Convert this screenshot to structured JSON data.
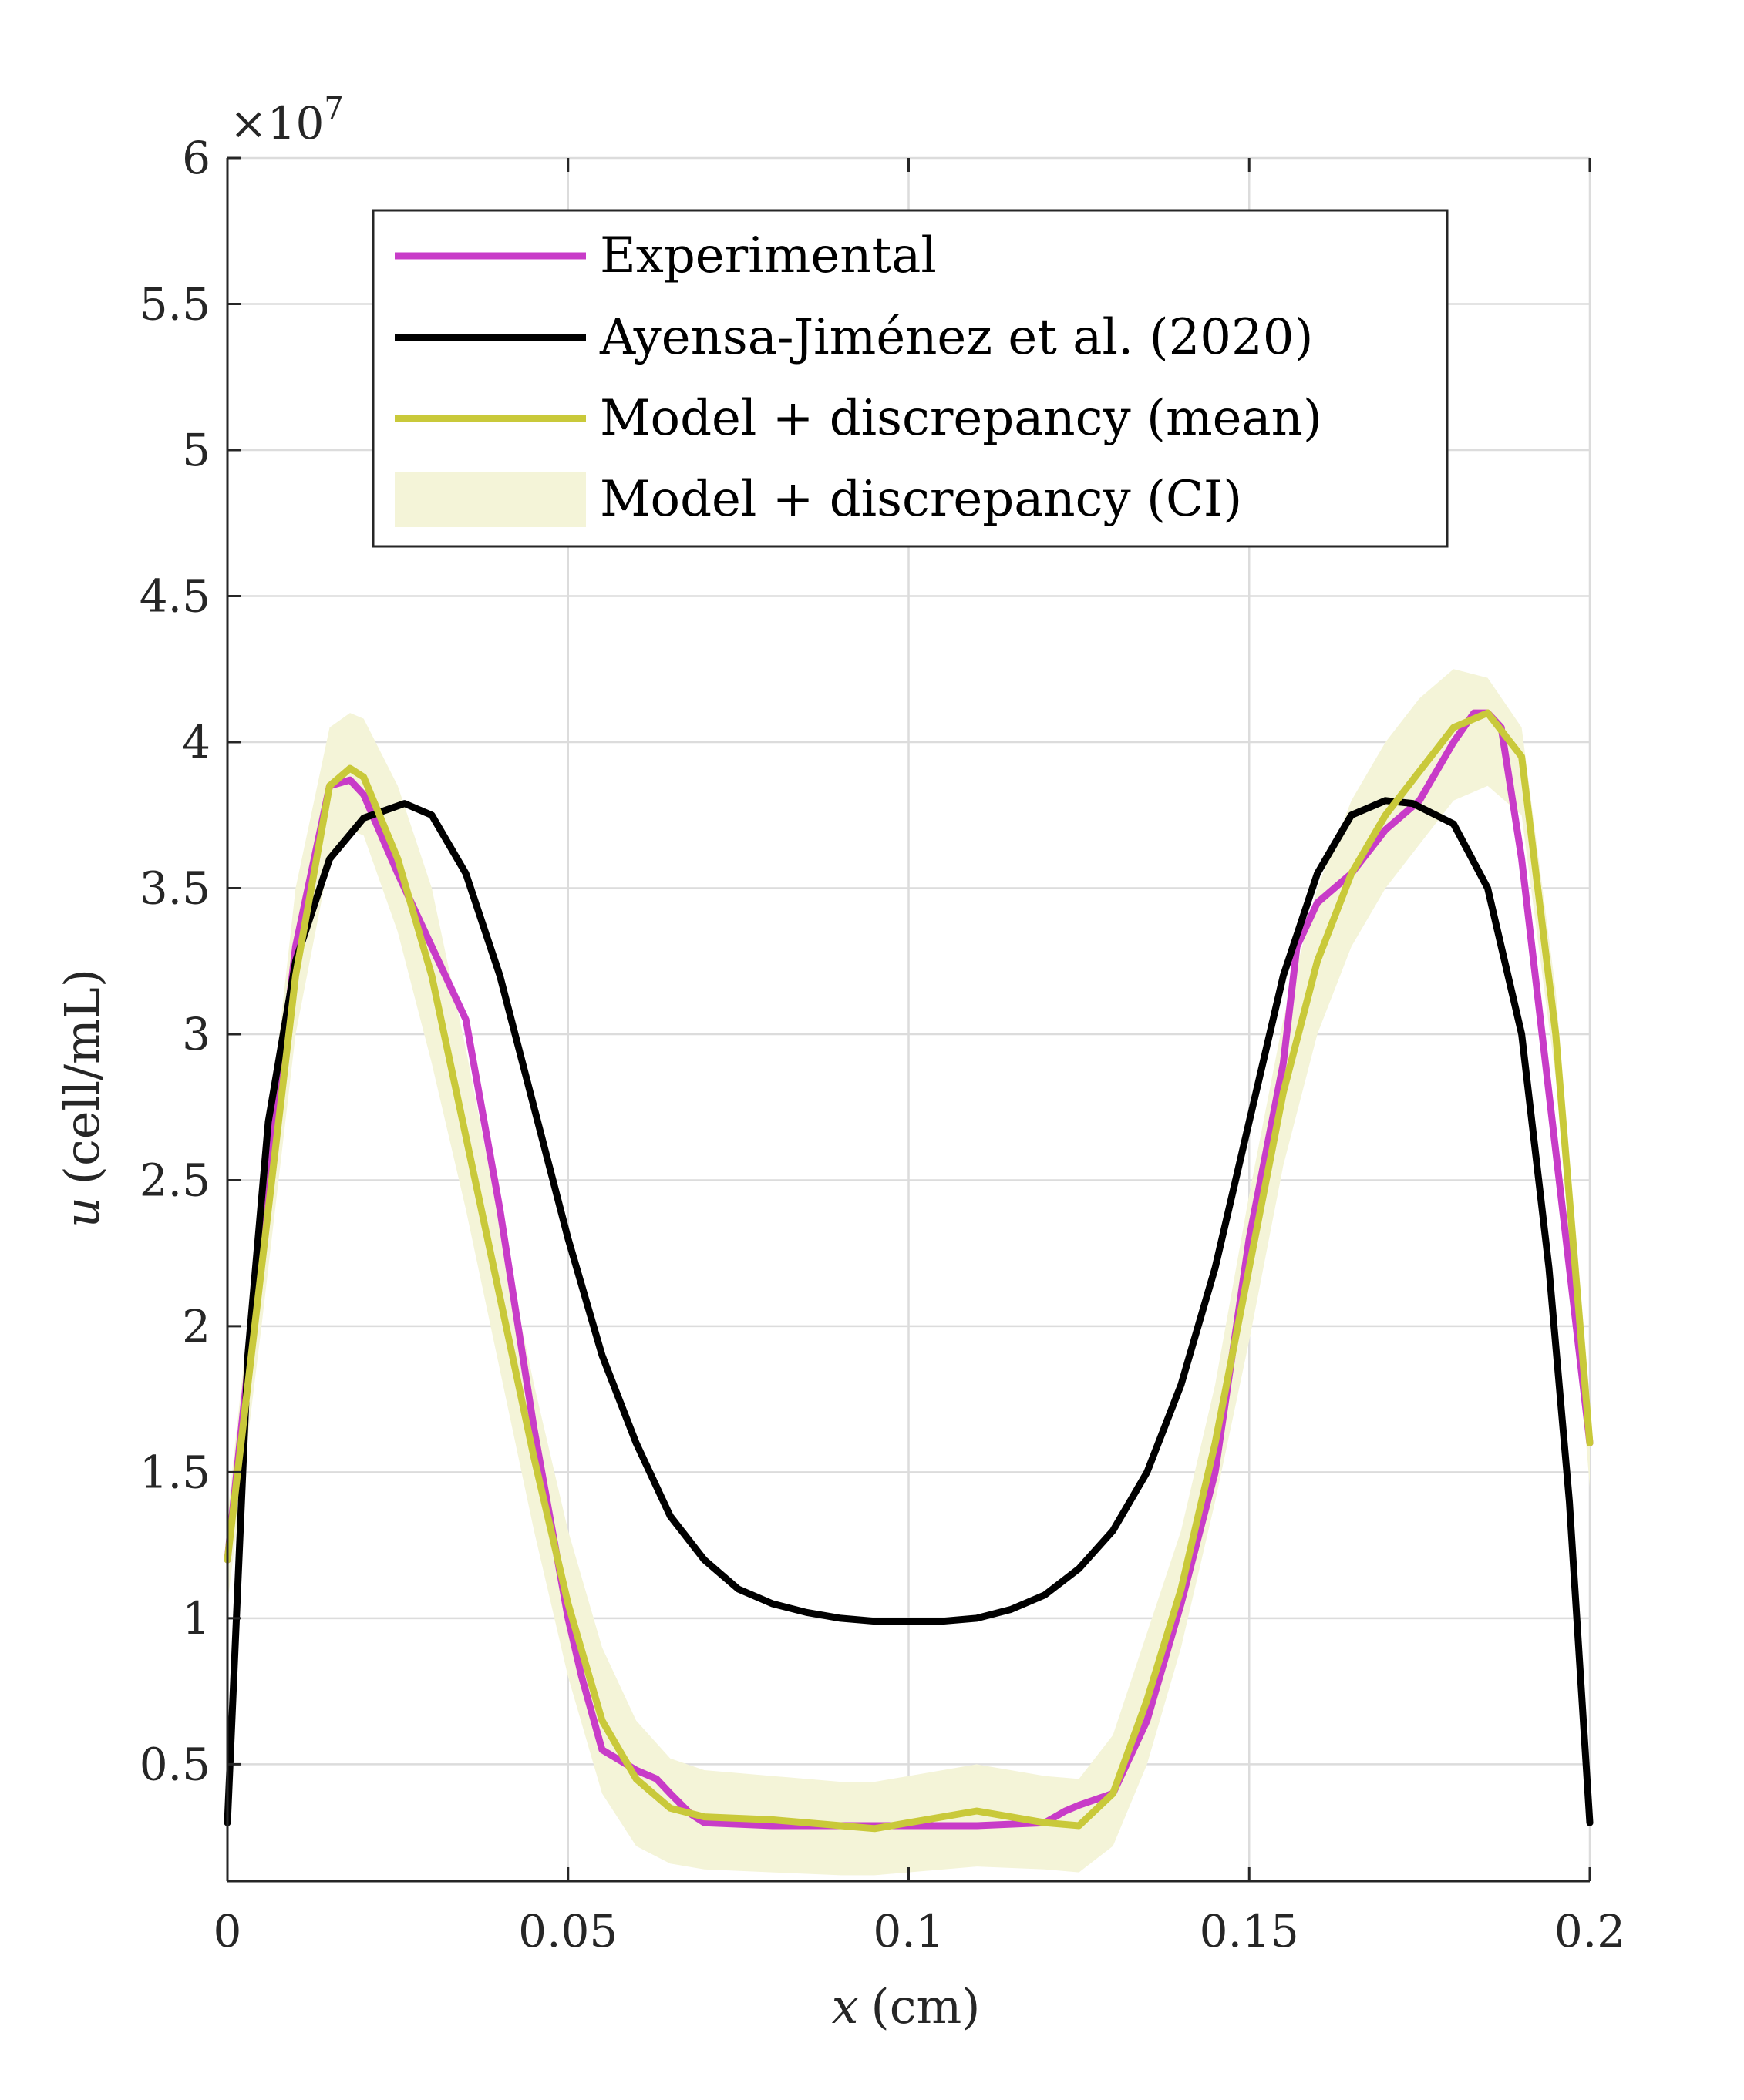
{
  "chart_data": {
    "type": "line",
    "title": "",
    "xlabel_var": "x",
    "xlabel_unit": "(cm)",
    "ylabel_var": "u",
    "ylabel_unit": "(cell/mL)",
    "exponent_label": "×10",
    "exponent_power": "7",
    "xlim": [
      0,
      0.2
    ],
    "ylim": [
      0.1,
      6
    ],
    "xticks": [
      0,
      0.05,
      0.1,
      0.15,
      0.2
    ],
    "xtick_labels": [
      "0",
      "0.05",
      "0.1",
      "0.15",
      "0.2"
    ],
    "yticks": [
      0.5,
      1,
      1.5,
      2,
      2.5,
      3,
      3.5,
      4,
      4.5,
      5,
      5.5,
      6
    ],
    "ytick_labels": [
      "0.5",
      "1",
      "1.5",
      "2",
      "2.5",
      "3",
      "3.5",
      "4",
      "4.5",
      "5",
      "5.5",
      "6"
    ],
    "grid": true,
    "legend_position": "top-center",
    "legend": [
      "Experimental",
      "Ayensa-Jiménez et al. (2020)",
      "Model + discrepancy (mean)",
      "Model + discrepancy (CI)"
    ],
    "colors": {
      "experimental": "#C83CC8",
      "ayensa": "#000000",
      "model_mean": "#C9C93A",
      "model_ci": "#F4F4D8",
      "grid": "#DCDCDC",
      "axis": "#262626"
    },
    "series": [
      {
        "name": "Experimental",
        "x": [
          0,
          0.005,
          0.01,
          0.015,
          0.018,
          0.02,
          0.025,
          0.03,
          0.035,
          0.04,
          0.045,
          0.05,
          0.052,
          0.055,
          0.06,
          0.063,
          0.065,
          0.068,
          0.07,
          0.08,
          0.09,
          0.1,
          0.11,
          0.12,
          0.123,
          0.125,
          0.13,
          0.135,
          0.14,
          0.145,
          0.15,
          0.155,
          0.157,
          0.16,
          0.165,
          0.17,
          0.175,
          0.18,
          0.183,
          0.185,
          0.187,
          0.19,
          0.195,
          0.2
        ],
        "y": [
          1.2,
          2.3,
          3.3,
          3.85,
          3.87,
          3.82,
          3.55,
          3.3,
          3.05,
          2.4,
          1.65,
          1.0,
          0.8,
          0.55,
          0.48,
          0.45,
          0.4,
          0.33,
          0.3,
          0.29,
          0.29,
          0.29,
          0.29,
          0.3,
          0.34,
          0.36,
          0.4,
          0.65,
          1.05,
          1.5,
          2.3,
          2.9,
          3.3,
          3.45,
          3.55,
          3.7,
          3.8,
          4.0,
          4.1,
          4.1,
          4.05,
          3.6,
          2.6,
          1.6
        ]
      },
      {
        "name": "Ayensa-Jiménez et al. (2020)",
        "x": [
          0,
          0.003,
          0.006,
          0.01,
          0.015,
          0.02,
          0.026,
          0.03,
          0.035,
          0.04,
          0.045,
          0.05,
          0.055,
          0.06,
          0.065,
          0.07,
          0.075,
          0.08,
          0.085,
          0.09,
          0.095,
          0.1,
          0.105,
          0.11,
          0.115,
          0.12,
          0.125,
          0.13,
          0.135,
          0.14,
          0.145,
          0.15,
          0.155,
          0.16,
          0.165,
          0.17,
          0.174,
          0.18,
          0.185,
          0.19,
          0.194,
          0.197,
          0.2
        ],
        "y": [
          0.3,
          1.9,
          2.7,
          3.25,
          3.6,
          3.74,
          3.79,
          3.75,
          3.55,
          3.2,
          2.75,
          2.3,
          1.9,
          1.6,
          1.35,
          1.2,
          1.1,
          1.05,
          1.02,
          1.0,
          0.99,
          0.99,
          0.99,
          1.0,
          1.03,
          1.08,
          1.17,
          1.3,
          1.5,
          1.8,
          2.2,
          2.7,
          3.2,
          3.55,
          3.75,
          3.8,
          3.79,
          3.72,
          3.5,
          3.0,
          2.2,
          1.4,
          0.3
        ]
      },
      {
        "name": "Model + discrepancy (mean)",
        "x": [
          0,
          0.005,
          0.01,
          0.015,
          0.018,
          0.02,
          0.025,
          0.03,
          0.035,
          0.04,
          0.045,
          0.05,
          0.055,
          0.06,
          0.065,
          0.07,
          0.08,
          0.09,
          0.095,
          0.1,
          0.11,
          0.12,
          0.125,
          0.13,
          0.135,
          0.14,
          0.145,
          0.15,
          0.155,
          0.16,
          0.165,
          0.17,
          0.175,
          0.18,
          0.185,
          0.19,
          0.195,
          0.2
        ],
        "y": [
          1.2,
          2.2,
          3.2,
          3.85,
          3.91,
          3.88,
          3.6,
          3.2,
          2.65,
          2.1,
          1.55,
          1.05,
          0.65,
          0.45,
          0.35,
          0.32,
          0.31,
          0.29,
          0.28,
          0.3,
          0.34,
          0.3,
          0.29,
          0.4,
          0.72,
          1.1,
          1.6,
          2.2,
          2.8,
          3.25,
          3.55,
          3.75,
          3.9,
          4.05,
          4.1,
          3.95,
          3.0,
          1.6
        ]
      },
      {
        "name": "Model + discrepancy (CI)",
        "x": [
          0,
          0.005,
          0.01,
          0.015,
          0.018,
          0.02,
          0.025,
          0.03,
          0.035,
          0.04,
          0.045,
          0.05,
          0.055,
          0.06,
          0.065,
          0.07,
          0.08,
          0.09,
          0.095,
          0.1,
          0.11,
          0.12,
          0.125,
          0.13,
          0.135,
          0.14,
          0.145,
          0.15,
          0.155,
          0.16,
          0.165,
          0.17,
          0.175,
          0.18,
          0.185,
          0.19,
          0.195,
          0.2
        ],
        "lower": [
          1.05,
          2.0,
          3.0,
          3.6,
          3.7,
          3.68,
          3.35,
          2.9,
          2.4,
          1.85,
          1.3,
          0.8,
          0.4,
          0.22,
          0.16,
          0.14,
          0.13,
          0.12,
          0.12,
          0.13,
          0.15,
          0.14,
          0.13,
          0.22,
          0.5,
          0.9,
          1.4,
          1.95,
          2.55,
          3.0,
          3.3,
          3.5,
          3.65,
          3.8,
          3.85,
          3.75,
          2.85,
          1.45
        ],
        "upper": [
          1.35,
          2.45,
          3.5,
          4.05,
          4.1,
          4.08,
          3.85,
          3.5,
          2.95,
          2.35,
          1.8,
          1.3,
          0.9,
          0.65,
          0.52,
          0.48,
          0.46,
          0.44,
          0.44,
          0.46,
          0.5,
          0.46,
          0.45,
          0.6,
          0.95,
          1.3,
          1.8,
          2.45,
          3.05,
          3.5,
          3.8,
          4.0,
          4.15,
          4.25,
          4.22,
          4.05,
          3.15,
          1.75
        ]
      }
    ]
  }
}
